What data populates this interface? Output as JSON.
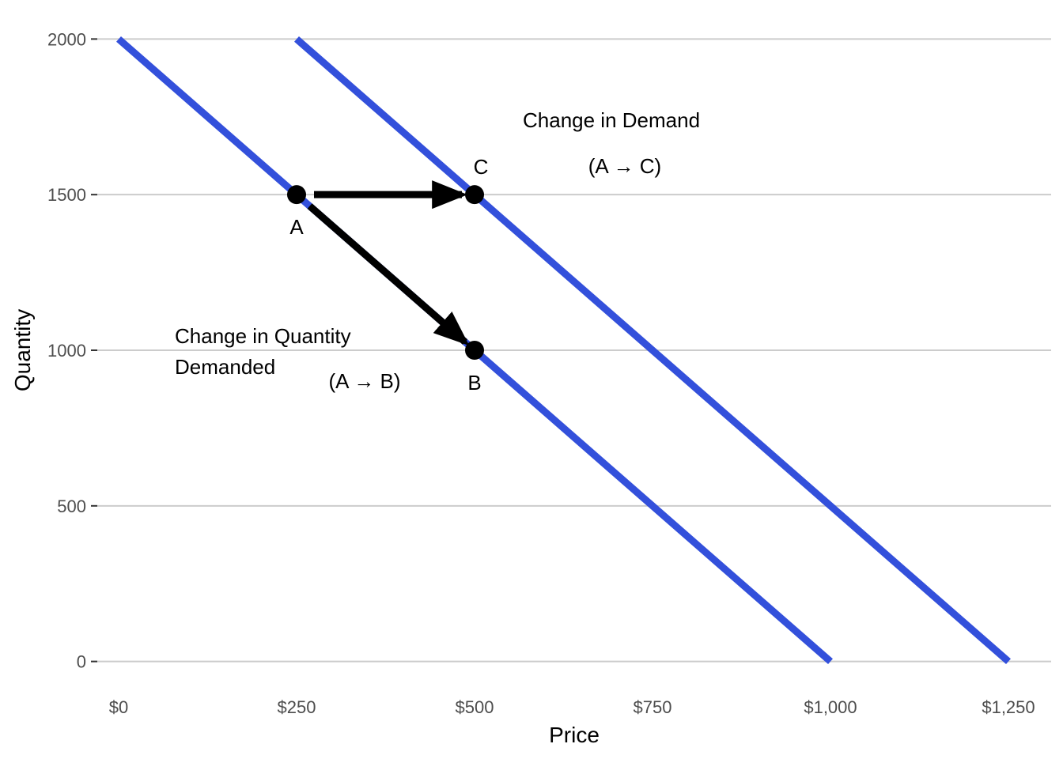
{
  "chart_data": {
    "type": "line",
    "title": "",
    "xlabel": "Price",
    "ylabel": "Quantity",
    "xlim": [
      -30,
      1310
    ],
    "ylim": [
      -100,
      2100
    ],
    "x_ticks": [
      0,
      250,
      500,
      750,
      1000,
      1250
    ],
    "x_tick_labels": [
      "$0",
      "$250",
      "$500",
      "$750",
      "$1,000",
      "$1,250"
    ],
    "y_ticks": [
      0,
      500,
      1000,
      1500,
      2000
    ],
    "y_tick_labels": [
      "0",
      "500",
      "1000",
      "1500",
      "2000"
    ],
    "grid": "horizontal",
    "line_color": "#3350DB",
    "series": [
      {
        "points": [
          [
            0,
            2000
          ],
          [
            1000,
            0
          ]
        ]
      },
      {
        "points": [
          [
            250,
            2000
          ],
          [
            1250,
            0
          ]
        ]
      }
    ],
    "points": [
      {
        "label": "A",
        "x": 250,
        "y": 1500,
        "label_pos": "below"
      },
      {
        "label": "B",
        "x": 500,
        "y": 1000,
        "label_pos": "below"
      },
      {
        "label": "C",
        "x": 500,
        "y": 1500,
        "label_pos": "above"
      }
    ],
    "arrows": [
      {
        "from": [
          250,
          1500
        ],
        "to": [
          500,
          1500
        ]
      },
      {
        "from": [
          250,
          1500
        ],
        "to": [
          500,
          1000
        ]
      }
    ],
    "annotations": [
      {
        "id": "demand-title",
        "text": "Change in Demand",
        "x": 350,
        "y": 1750
      },
      {
        "id": "demand-path",
        "text": "(A → C)",
        "x": 350,
        "y": 1600
      },
      {
        "id": "qd-line1",
        "text": "Change in Quantity",
        "x": 25,
        "y": 1030
      },
      {
        "id": "qd-line2",
        "text": "Demanded",
        "x": 25,
        "y": 930
      },
      {
        "id": "qd-path",
        "text": "(A → B)",
        "x": 130,
        "y": 880
      }
    ]
  }
}
